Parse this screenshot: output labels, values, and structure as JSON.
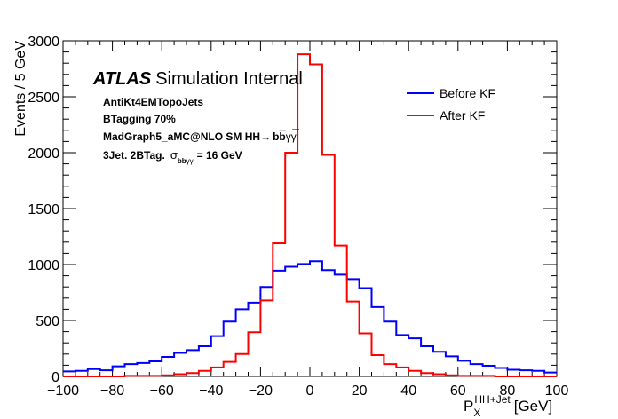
{
  "chart_data": {
    "type": "line",
    "style": "step-histogram",
    "xlabel_main": "P",
    "xlabel_sub": "X",
    "xlabel_sup": "HH+Jet",
    "xlabel_unit": "[GeV]",
    "ylabel": "Events / 5 GeV",
    "xlim": [
      -100,
      100
    ],
    "ylim": [
      0,
      3000
    ],
    "bin_width": 5,
    "x_ticks": [
      "−100",
      "−80",
      "−60",
      "−40",
      "−20",
      "0",
      "20",
      "40",
      "60",
      "80",
      "100"
    ],
    "x_tick_values": [
      -100,
      -80,
      -60,
      -40,
      -20,
      0,
      20,
      40,
      60,
      80,
      100
    ],
    "y_ticks": [
      "0",
      "500",
      "1000",
      "1500",
      "2000",
      "2500",
      "3000"
    ],
    "y_tick_values": [
      0,
      500,
      1000,
      1500,
      2000,
      2500,
      3000
    ],
    "bin_edges": [
      -100,
      -95,
      -90,
      -85,
      -80,
      -75,
      -70,
      -65,
      -60,
      -55,
      -50,
      -45,
      -40,
      -35,
      -30,
      -25,
      -20,
      -15,
      -10,
      -5,
      0,
      5,
      10,
      15,
      20,
      25,
      30,
      35,
      40,
      45,
      50,
      55,
      60,
      65,
      70,
      75,
      80,
      85,
      90,
      95,
      100
    ],
    "series": [
      {
        "name": "Before KF",
        "color": "#0000ff",
        "values": [
          45,
          50,
          65,
          55,
          90,
          110,
          120,
          135,
          175,
          210,
          235,
          270,
          360,
          490,
          600,
          660,
          800,
          945,
          980,
          1005,
          1030,
          950,
          910,
          870,
          790,
          620,
          490,
          370,
          340,
          270,
          220,
          180,
          140,
          110,
          95,
          75,
          60,
          55,
          50,
          35
        ]
      },
      {
        "name": "After KF",
        "color": "#ff0000",
        "values": [
          0,
          0,
          0,
          0,
          0,
          5,
          5,
          5,
          10,
          20,
          30,
          50,
          80,
          130,
          200,
          395,
          680,
          1190,
          2000,
          2880,
          2790,
          1980,
          1170,
          670,
          385,
          190,
          110,
          80,
          50,
          30,
          20,
          10,
          5,
          5,
          5,
          0,
          0,
          0,
          0,
          0
        ]
      }
    ]
  },
  "annotations": {
    "atlas": "ATLAS",
    "atlas_rest": "Simulation Internal",
    "line1": "AntiKt4EMTopoJets",
    "line2": "BTagging 70%",
    "line3_prefix": "MadGraph5_aMC@NLO SM HH",
    "line3_arrow": "→",
    "line3_b1": "b",
    "line3_b2": "b",
    "line3_gg": "γγ",
    "line4_prefix": "3Jet. 2BTag.",
    "line4_sigma": "σ",
    "line4_sub_b1": "b",
    "line4_sub_b2": "b",
    "line4_sub_gg": "γγ",
    "line4_value": "= 16 GeV"
  },
  "legend": {
    "placement": "top-right",
    "entries": [
      "Before KF",
      "After KF"
    ]
  }
}
